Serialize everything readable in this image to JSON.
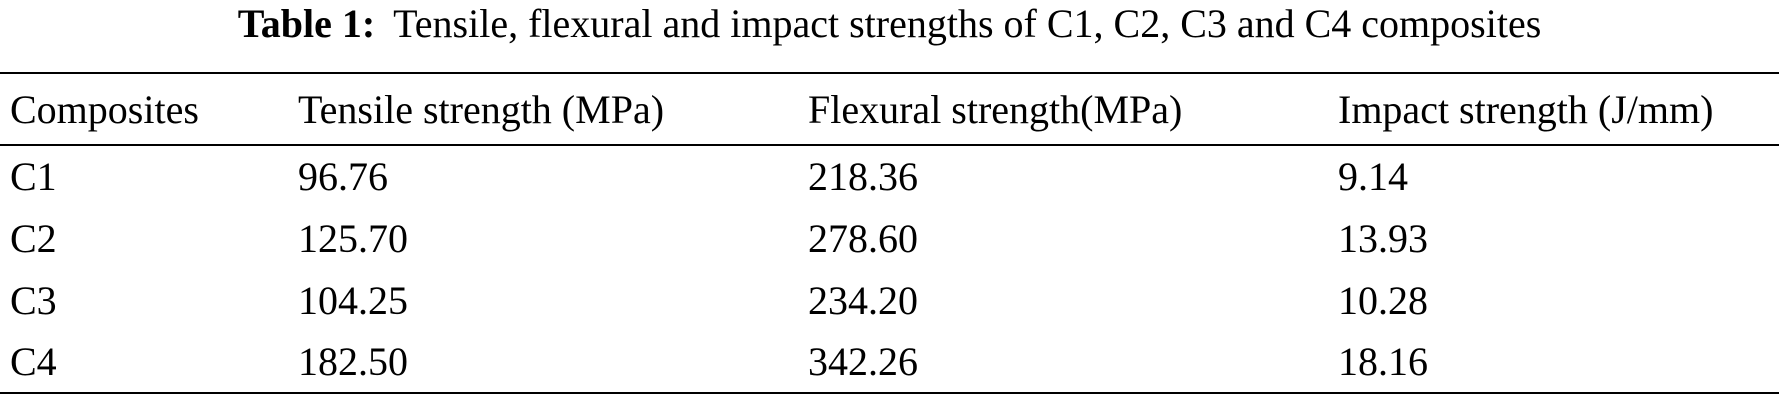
{
  "caption": {
    "label": "Table 1:",
    "text": "Tensile, flexural and impact strengths of C1, C2, C3 and C4 composites"
  },
  "table": {
    "headers": [
      "Composites",
      "Tensile strength (MPa)",
      "Flexural strength(MPa)",
      "Impact strength (J/mm)"
    ],
    "rows": [
      [
        "C1",
        "96.76",
        "218.36",
        "9.14"
      ],
      [
        "C2",
        "125.70",
        "278.60",
        "13.93"
      ],
      [
        "C3",
        "104.25",
        "234.20",
        "10.28"
      ],
      [
        "C4",
        "182.50",
        "342.26",
        "18.16"
      ]
    ]
  }
}
